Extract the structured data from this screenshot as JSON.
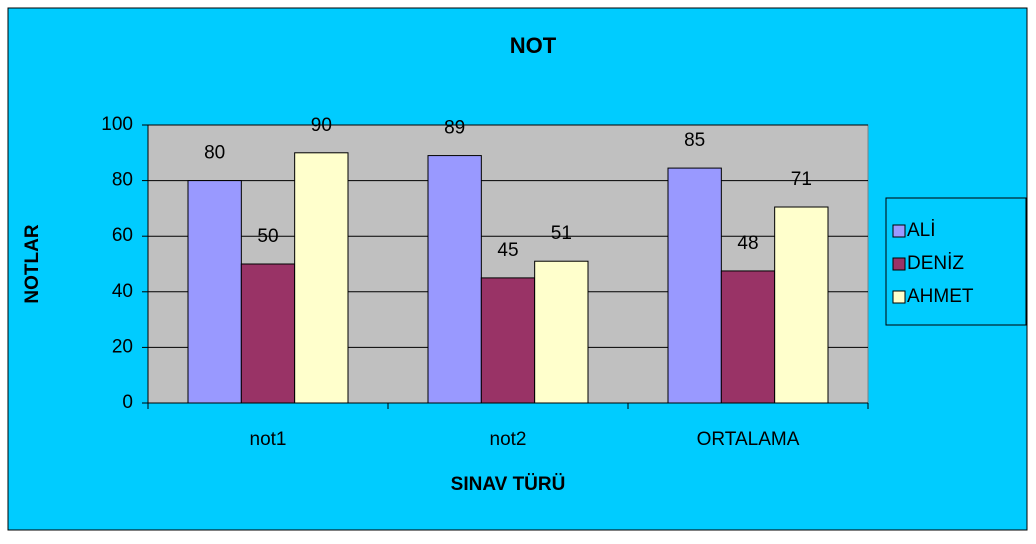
{
  "chart_data": {
    "type": "bar",
    "title": "NOT",
    "x_label": "SINAV TÜRÜ",
    "y_label": "NOTLAR",
    "categories": [
      "not1",
      "not2",
      "ORTALAMA"
    ],
    "series": [
      {
        "name": "ALİ",
        "color": "#9999ff",
        "values": [
          80,
          89,
          84.5
        ],
        "value_labels": [
          "80",
          "89",
          "85"
        ]
      },
      {
        "name": "DENİZ",
        "color": "#993366",
        "values": [
          50,
          45,
          47.5
        ],
        "value_labels": [
          "50",
          "45",
          "48"
        ]
      },
      {
        "name": "AHMET",
        "color": "#ffffcc",
        "values": [
          90,
          51,
          70.5
        ],
        "value_labels": [
          "90",
          "51",
          "71"
        ]
      }
    ],
    "ylim": [
      0,
      100
    ],
    "yticks": [
      0,
      20,
      40,
      60,
      80,
      100
    ],
    "grid": true,
    "legend": "right"
  }
}
